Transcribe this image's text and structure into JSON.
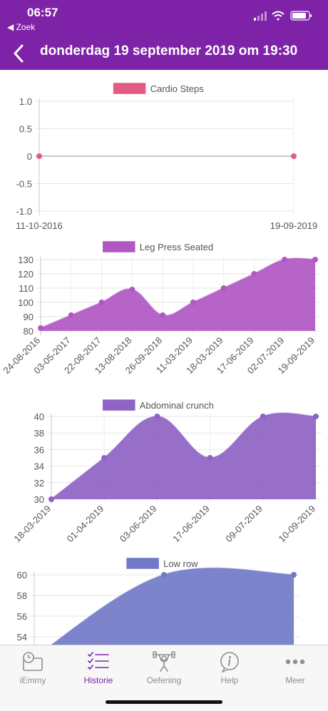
{
  "status_bar": {
    "time": "06:57",
    "back_app": "Zoek"
  },
  "nav": {
    "title": "donderdag 19 september 2019 om 19:30"
  },
  "colors": {
    "header": "#7e22a8",
    "active_tab": "#7e22a8"
  },
  "charts": [
    {
      "type": "line",
      "legend": "Cardio Steps",
      "color": "#e55a84",
      "categories": [
        "11-10-2016",
        "19-09-2019"
      ],
      "values": [
        0,
        0
      ],
      "yticks": [
        1.0,
        0.5,
        0,
        -0.5,
        -1.0
      ],
      "ytick_labels": [
        "1.0",
        "0.5",
        "0",
        "-0.5",
        "-1.0"
      ],
      "ylim": [
        -1,
        1
      ],
      "filled": false,
      "rotated_labels": false
    },
    {
      "type": "area",
      "legend": "Leg Press Seated",
      "color": "#b157c4",
      "categories": [
        "24-08-2016",
        "03-05-2017",
        "22-08-2017",
        "13-08-2018",
        "26-09-2018",
        "11-03-2019",
        "18-03-2019",
        "17-06-2019",
        "02-07-2019",
        "19-09-2019"
      ],
      "values": [
        82,
        91,
        100,
        109,
        91,
        100,
        110,
        120,
        130,
        130
      ],
      "yticks": [
        130,
        120,
        110,
        100,
        90,
        80
      ],
      "ytick_labels": [
        "130",
        "120",
        "110",
        "100",
        "90",
        "80"
      ],
      "ylim": [
        80,
        130
      ],
      "filled": true,
      "rotated_labels": true
    },
    {
      "type": "area",
      "legend": "Abdominal crunch",
      "color": "#8e63c4",
      "categories": [
        "18-03-2019",
        "01-04-2019",
        "03-06-2019",
        "17-06-2019",
        "09-07-2019",
        "10-09-2019"
      ],
      "values": [
        30,
        35,
        40,
        35,
        40,
        40
      ],
      "yticks": [
        40,
        38,
        36,
        34,
        32,
        30
      ],
      "ytick_labels": [
        "40",
        "38",
        "36",
        "34",
        "32",
        "30"
      ],
      "ylim": [
        30,
        40
      ],
      "filled": true,
      "rotated_labels": true
    },
    {
      "type": "area",
      "legend": "Low row",
      "color": "#7379c8",
      "categories": [
        "",
        "",
        ""
      ],
      "values": [
        52,
        60,
        60
      ],
      "yticks": [
        60,
        58,
        56,
        54
      ],
      "ytick_labels": [
        "60",
        "58",
        "56",
        "54"
      ],
      "ylim": [
        52,
        60
      ],
      "filled": true,
      "rotated_labels": false
    }
  ],
  "tabs": [
    {
      "label": "iEmmy",
      "icon": "clock-screen-icon",
      "active": false
    },
    {
      "label": "Historie",
      "icon": "checklist-icon",
      "active": true
    },
    {
      "label": "Oefening",
      "icon": "weightlifter-icon",
      "active": false
    },
    {
      "label": "Help",
      "icon": "info-icon",
      "active": false
    },
    {
      "label": "Meer",
      "icon": "more-dots-icon",
      "active": false
    }
  ]
}
